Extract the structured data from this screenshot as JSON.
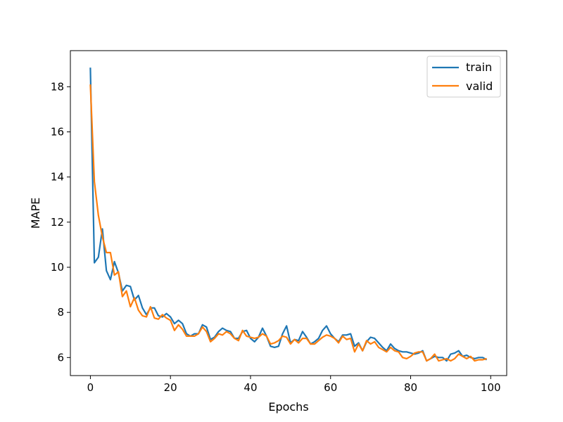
{
  "chart_data": {
    "type": "line",
    "title": "",
    "xlabel": "Epochs",
    "ylabel": "MAPE",
    "xlim": [
      -5,
      104
    ],
    "ylim": [
      5.2,
      19.6
    ],
    "xticks": [
      0,
      20,
      40,
      60,
      80,
      100
    ],
    "yticks": [
      6,
      8,
      10,
      12,
      14,
      16,
      18
    ],
    "xtick_labels": [
      "0",
      "20",
      "40",
      "60",
      "80",
      "100"
    ],
    "ytick_labels": [
      "6",
      "8",
      "10",
      "12",
      "14",
      "16",
      "18"
    ],
    "grid": false,
    "legend_position": "top-right",
    "x": [
      0,
      1,
      2,
      3,
      4,
      5,
      6,
      7,
      8,
      9,
      10,
      11,
      12,
      13,
      14,
      15,
      16,
      17,
      18,
      19,
      20,
      21,
      22,
      23,
      24,
      25,
      26,
      27,
      28,
      29,
      30,
      31,
      32,
      33,
      34,
      35,
      36,
      37,
      38,
      39,
      40,
      41,
      42,
      43,
      44,
      45,
      46,
      47,
      48,
      49,
      50,
      51,
      52,
      53,
      54,
      55,
      56,
      57,
      58,
      59,
      60,
      61,
      62,
      63,
      64,
      65,
      66,
      67,
      68,
      69,
      70,
      71,
      72,
      73,
      74,
      75,
      76,
      77,
      78,
      79,
      80,
      81,
      82,
      83,
      84,
      85,
      86,
      87,
      88,
      89,
      90,
      91,
      92,
      93,
      94,
      95,
      96,
      97,
      98,
      99
    ],
    "series": [
      {
        "name": "train",
        "color": "#1f77b4",
        "values": [
          18.85,
          10.2,
          10.45,
          11.7,
          9.85,
          9.45,
          10.25,
          9.75,
          8.95,
          9.2,
          9.15,
          8.55,
          8.75,
          8.2,
          7.9,
          8.2,
          8.2,
          7.85,
          7.8,
          7.95,
          7.8,
          7.5,
          7.65,
          7.5,
          7.05,
          6.95,
          7.05,
          7.05,
          7.45,
          7.35,
          6.8,
          6.9,
          7.15,
          7.3,
          7.2,
          7.15,
          6.85,
          6.85,
          7.15,
          7.2,
          6.85,
          6.7,
          6.9,
          7.3,
          6.95,
          6.5,
          6.45,
          6.5,
          7.05,
          7.4,
          6.65,
          6.8,
          6.75,
          7.15,
          6.9,
          6.6,
          6.7,
          6.85,
          7.2,
          7.4,
          7.05,
          6.85,
          6.7,
          7.0,
          7.0,
          7.05,
          6.5,
          6.65,
          6.3,
          6.7,
          6.9,
          6.85,
          6.65,
          6.45,
          6.3,
          6.6,
          6.4,
          6.3,
          6.25,
          6.25,
          6.2,
          6.15,
          6.2,
          6.3,
          5.85,
          5.95,
          6.05,
          6.0,
          6.0,
          5.85,
          6.15,
          6.2,
          6.3,
          6.05,
          6.1,
          6.0,
          5.95,
          6.0,
          6.0,
          5.9
        ]
      },
      {
        "name": "valid",
        "color": "#ff7f0e",
        "values": [
          18.1,
          13.8,
          12.3,
          11.35,
          10.65,
          10.65,
          9.65,
          9.8,
          8.7,
          8.95,
          8.25,
          8.65,
          8.1,
          7.85,
          7.8,
          8.25,
          7.75,
          7.7,
          7.9,
          7.75,
          7.65,
          7.2,
          7.45,
          7.25,
          6.95,
          6.95,
          6.95,
          7.05,
          7.35,
          7.15,
          6.7,
          6.85,
          7.05,
          7.0,
          7.15,
          7.05,
          6.85,
          6.75,
          7.2,
          6.95,
          6.9,
          6.85,
          6.9,
          7.05,
          6.95,
          6.6,
          6.65,
          6.75,
          6.95,
          6.9,
          6.6,
          6.8,
          6.65,
          6.85,
          6.85,
          6.6,
          6.6,
          6.75,
          6.9,
          7.0,
          6.95,
          6.85,
          6.65,
          6.95,
          6.8,
          6.85,
          6.25,
          6.6,
          6.3,
          6.75,
          6.6,
          6.7,
          6.45,
          6.35,
          6.25,
          6.45,
          6.3,
          6.25,
          6.0,
          5.95,
          6.05,
          6.2,
          6.25,
          6.25,
          5.85,
          5.95,
          6.15,
          5.85,
          5.9,
          5.95,
          5.85,
          5.95,
          6.15,
          6.05,
          5.95,
          6.05,
          5.85,
          5.9,
          5.9,
          5.95
        ]
      }
    ]
  }
}
